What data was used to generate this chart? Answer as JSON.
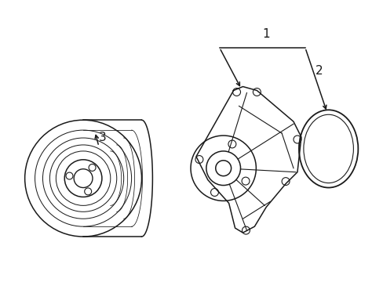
{
  "bg_color": "#ffffff",
  "line_color": "#1a1a1a",
  "line_width": 1.1,
  "thin_line": 0.8,
  "label_fontsize": 10,
  "fig_w": 4.89,
  "fig_h": 3.6,
  "dpi": 100
}
